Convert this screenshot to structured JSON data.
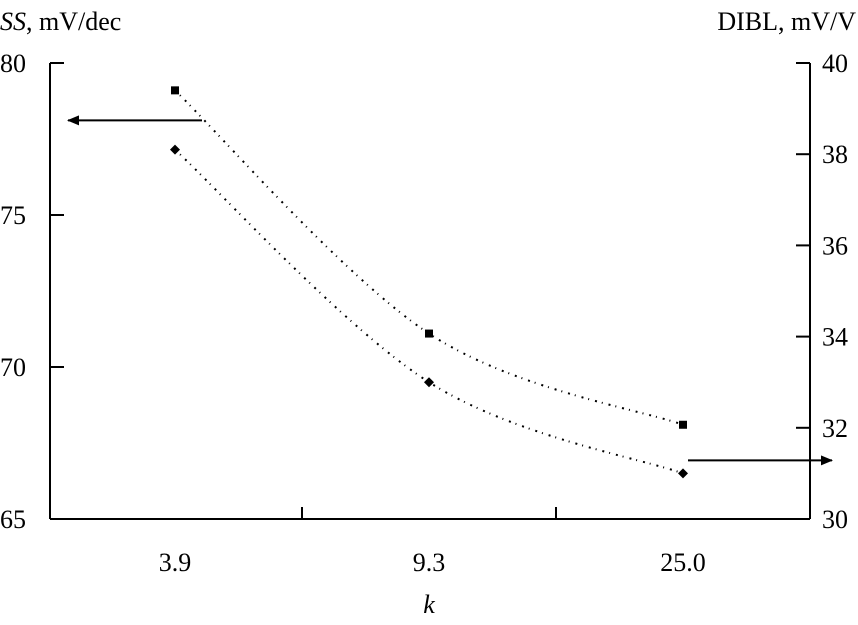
{
  "chart_data": {
    "type": "line",
    "categories": [
      "3.9",
      "9.3",
      "25.0"
    ],
    "xlabel": "k",
    "left_axis": {
      "label_italic": "SS",
      "label_rest": ", mV/dec",
      "ylim": [
        65,
        80
      ],
      "ticks": [
        65,
        70,
        75,
        80
      ]
    },
    "right_axis": {
      "label": "DIBL, mV/V",
      "ylim": [
        30,
        40
      ],
      "ticks": [
        30,
        32,
        34,
        36,
        38,
        40
      ]
    },
    "series": [
      {
        "axis": "left",
        "marker": "square",
        "values": [
          79.1,
          71.1,
          68.1
        ]
      },
      {
        "axis": "right",
        "marker": "diamond",
        "values": [
          38.1,
          33.0,
          31.0
        ]
      }
    ],
    "arrows": [
      {
        "series_index": 0,
        "points_to": "left"
      },
      {
        "series_index": 1,
        "points_to": "right"
      }
    ],
    "grid": false
  }
}
